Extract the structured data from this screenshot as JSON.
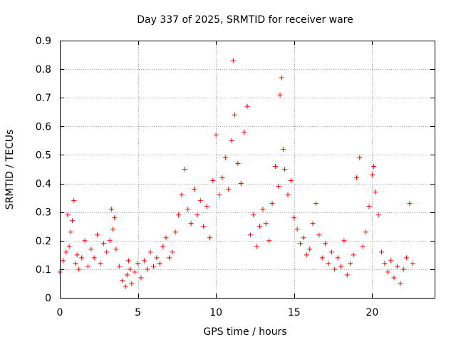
{
  "chart_data": {
    "type": "scatter",
    "title": "Day 337 of 2025, SRMTID for receiver ware",
    "xlabel": "GPS time / hours",
    "ylabel": "SRMTID / TECUs",
    "xlim": [
      0,
      24
    ],
    "ylim": [
      0,
      0.9
    ],
    "x_ticks": [
      0,
      5,
      10,
      15,
      20
    ],
    "x_tick_labels": [
      "0",
      "5",
      "10",
      "15",
      "20"
    ],
    "y_ticks": [
      0,
      0.1,
      0.2,
      0.3,
      0.4,
      0.5,
      0.6,
      0.7,
      0.8,
      0.9
    ],
    "y_tick_labels": [
      "0",
      "0.1",
      "0.2",
      "0.3",
      "0.4",
      "0.5",
      "0.6",
      "0.7",
      "0.8",
      "0.9"
    ],
    "grid": true,
    "marker": "+",
    "series": [
      {
        "name": "SRMTID",
        "color": "#ff0000",
        "x": [
          0.0,
          0.2,
          0.4,
          0.5,
          0.6,
          0.7,
          0.8,
          0.9,
          1.0,
          1.1,
          1.2,
          1.4,
          1.6,
          1.8,
          2.0,
          2.2,
          2.4,
          2.6,
          2.8,
          3.0,
          3.2,
          3.3,
          3.4,
          3.5,
          3.6,
          3.8,
          4.0,
          4.2,
          4.3,
          4.4,
          4.5,
          4.6,
          4.8,
          5.0,
          5.2,
          5.4,
          5.6,
          5.8,
          6.0,
          6.2,
          6.4,
          6.6,
          6.8,
          7.0,
          7.2,
          7.4,
          7.6,
          7.8,
          8.0,
          8.2,
          8.4,
          8.6,
          8.8,
          9.0,
          9.2,
          9.4,
          9.6,
          9.8,
          10.0,
          10.2,
          10.4,
          10.6,
          10.8,
          11.0,
          11.1,
          11.2,
          11.4,
          11.6,
          11.8,
          12.0,
          12.2,
          12.4,
          12.6,
          12.8,
          13.0,
          13.2,
          13.4,
          13.6,
          13.8,
          14.0,
          14.1,
          14.2,
          14.3,
          14.4,
          14.6,
          14.8,
          15.0,
          15.2,
          15.4,
          15.6,
          15.8,
          16.0,
          16.2,
          16.4,
          16.6,
          16.8,
          17.0,
          17.2,
          17.4,
          17.6,
          17.8,
          18.0,
          18.2,
          18.4,
          18.6,
          18.8,
          19.0,
          19.2,
          19.4,
          19.6,
          19.8,
          20.0,
          20.1,
          20.2,
          20.4,
          20.6,
          20.8,
          21.0,
          21.2,
          21.4,
          21.6,
          21.8,
          22.0,
          22.2,
          22.4,
          22.6
        ],
        "y": [
          0.09,
          0.13,
          0.16,
          0.29,
          0.18,
          0.23,
          0.27,
          0.34,
          0.12,
          0.15,
          0.1,
          0.14,
          0.2,
          0.11,
          0.17,
          0.14,
          0.22,
          0.12,
          0.19,
          0.16,
          0.2,
          0.31,
          0.24,
          0.28,
          0.17,
          0.11,
          0.06,
          0.04,
          0.08,
          0.13,
          0.1,
          0.05,
          0.09,
          0.12,
          0.07,
          0.13,
          0.1,
          0.16,
          0.11,
          0.14,
          0.12,
          0.18,
          0.21,
          0.14,
          0.16,
          0.23,
          0.29,
          0.36,
          0.45,
          0.31,
          0.26,
          0.38,
          0.29,
          0.34,
          0.25,
          0.32,
          0.21,
          0.41,
          0.57,
          0.36,
          0.42,
          0.49,
          0.38,
          0.55,
          0.83,
          0.64,
          0.47,
          0.4,
          0.58,
          0.67,
          0.22,
          0.29,
          0.18,
          0.25,
          0.31,
          0.26,
          0.2,
          0.33,
          0.46,
          0.39,
          0.71,
          0.77,
          0.52,
          0.45,
          0.36,
          0.41,
          0.28,
          0.24,
          0.19,
          0.21,
          0.15,
          0.17,
          0.26,
          0.33,
          0.22,
          0.14,
          0.19,
          0.12,
          0.16,
          0.1,
          0.14,
          0.11,
          0.2,
          0.08,
          0.12,
          0.15,
          0.42,
          0.49,
          0.18,
          0.23,
          0.32,
          0.43,
          0.46,
          0.37,
          0.29,
          0.16,
          0.12,
          0.09,
          0.13,
          0.07,
          0.11,
          0.05,
          0.1,
          0.14,
          0.33,
          0.12
        ]
      }
    ]
  }
}
